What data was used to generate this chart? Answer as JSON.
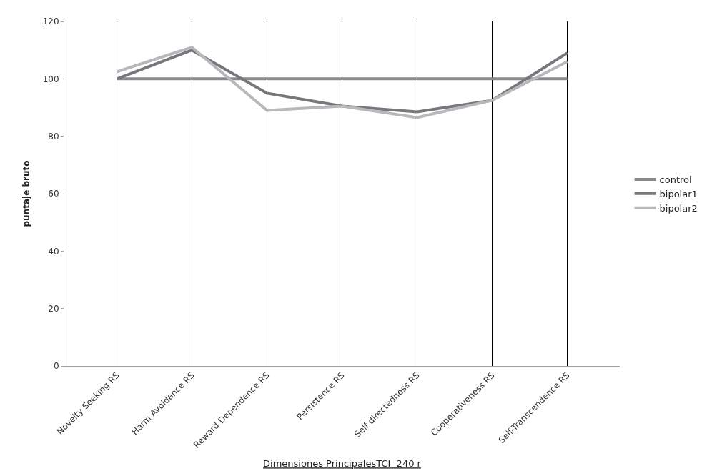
{
  "chart_data": {
    "type": "line",
    "xlabel": "Dimensiones PrincipalesTCI  240 r",
    "ylabel": "puntaje bruto",
    "categories": [
      "Novelty Seeking RS",
      "Harm Avoidance RS",
      "Reward Dependence RS",
      "Persistence RS",
      "Self directedness RS",
      "Cooperativeness RS",
      "Self-Transcendence RS"
    ],
    "series": [
      {
        "name": "control",
        "color": "#8a8a8e",
        "values": [
          100,
          100,
          100,
          100,
          100,
          100,
          100
        ]
      },
      {
        "name": "bipolar1",
        "color": "#78787c",
        "values": [
          100,
          110,
          95,
          90.5,
          88.5,
          92.5,
          109
        ]
      },
      {
        "name": "bipolar2",
        "color": "#b8b8bc",
        "values": [
          102.5,
          111,
          89,
          90.5,
          86.5,
          92.5,
          106
        ]
      }
    ],
    "ylim": [
      0,
      120
    ],
    "yticks": [
      0,
      20,
      40,
      60,
      80,
      100,
      120
    ],
    "grid": "x",
    "legend": "right",
    "marker": "none",
    "line_style": "solid"
  }
}
